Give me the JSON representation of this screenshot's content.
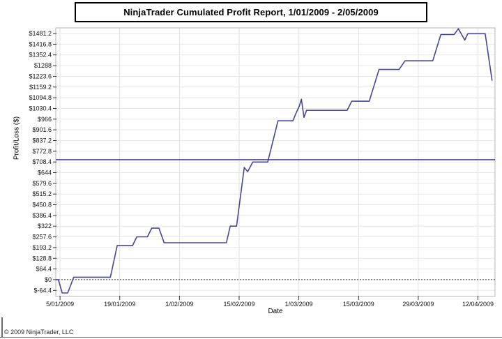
{
  "page": {
    "title": "NinjaTrader Cumulated Profit Report, 1/01/2009 - 2/05/2009",
    "footer": "© 2009 NinjaTrader, LLC"
  },
  "chart_data": {
    "type": "line",
    "title": "NinjaTrader Cumulated Profit Report, 1/01/2009 - 2/05/2009",
    "xlabel": "Date",
    "ylabel": "Profit/Loss ($)",
    "x_tick_labels": [
      "5/01/2009",
      "19/01/2009",
      "1/02/2009",
      "15/02/2009",
      "1/03/2009",
      "15/03/2009",
      "29/03/2009",
      "12/04/2009"
    ],
    "x_tick_days": [
      1,
      15,
      29,
      43,
      57,
      71,
      85,
      99
    ],
    "xlim_days": [
      0,
      103
    ],
    "y_ticks": [
      -64.4,
      0,
      64.4,
      128.8,
      193.2,
      257.6,
      322,
      386.4,
      450.8,
      515.2,
      579.6,
      644,
      708.4,
      772.8,
      837.2,
      901.6,
      966,
      1030.4,
      1094.8,
      1159.2,
      1223.6,
      1288,
      1352.4,
      1416.8,
      1481.2
    ],
    "y_tick_labels": [
      "$-64.4",
      "$0",
      "$64.4",
      "$128.8",
      "$193.2",
      "$257.6",
      "$322",
      "$386.4",
      "$450.8",
      "$515.2",
      "$579.6",
      "$644",
      "$708.4",
      "$772.8",
      "$837.2",
      "$901.6",
      "$966",
      "$1030.4",
      "$1094.8",
      "$1159.2",
      "$1223.6",
      "$1288",
      "$1352.4",
      "$1416.8",
      "$1481.2"
    ],
    "ylim": [
      -101,
      1515
    ],
    "grid": true,
    "legend": "none",
    "zero_line": {
      "value": 0,
      "style": "dotted",
      "color": "#3a3a3a"
    },
    "reference_line": {
      "value": 722,
      "color": "#474791"
    },
    "series": [
      {
        "name": "Cumulated Profit",
        "color": "#474791",
        "points": [
          [
            0,
            0
          ],
          [
            0.6,
            0
          ],
          [
            1.5,
            -80
          ],
          [
            2.8,
            -80
          ],
          [
            4.2,
            15
          ],
          [
            12.8,
            15
          ],
          [
            14.4,
            205
          ],
          [
            18.0,
            205
          ],
          [
            19.0,
            258
          ],
          [
            21.5,
            258
          ],
          [
            22.5,
            310
          ],
          [
            24.2,
            310
          ],
          [
            25.4,
            222
          ],
          [
            40.0,
            222
          ],
          [
            40.9,
            322
          ],
          [
            42.4,
            322
          ],
          [
            44.2,
            675
          ],
          [
            45.0,
            650
          ],
          [
            46.2,
            708
          ],
          [
            49.7,
            708
          ],
          [
            52.1,
            956
          ],
          [
            55.6,
            956
          ],
          [
            56.3,
            1000
          ],
          [
            57.1,
            1045
          ],
          [
            57.6,
            1086
          ],
          [
            58.2,
            977
          ],
          [
            58.8,
            1019
          ],
          [
            68.3,
            1019
          ],
          [
            69.4,
            1074
          ],
          [
            73.5,
            1074
          ],
          [
            75.8,
            1265
          ],
          [
            80.5,
            1265
          ],
          [
            81.9,
            1317
          ],
          [
            88.4,
            1317
          ],
          [
            90.3,
            1475
          ],
          [
            93.4,
            1475
          ],
          [
            94.4,
            1510
          ],
          [
            95.9,
            1442
          ],
          [
            96.6,
            1480
          ],
          [
            100.7,
            1480
          ],
          [
            102.3,
            1200
          ]
        ]
      }
    ],
    "colors": {
      "series_line": "#474791",
      "grid_h": "#e7e7e7",
      "grid_v": "#e2e2e2",
      "plot_border": "#b4b4b4",
      "tick": "#333333",
      "tick_text": "#111111"
    }
  }
}
